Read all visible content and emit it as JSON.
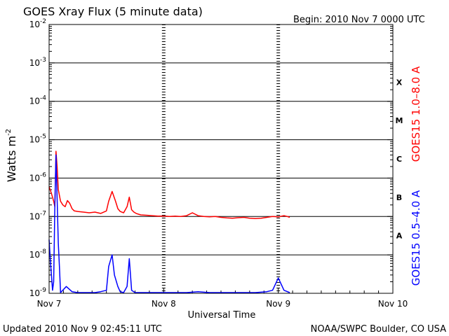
{
  "chart_data": {
    "type": "line",
    "title": "GOES Xray Flux (5 minute data)",
    "begin_label": "Begin:  2010 Nov 7 0000 UTC",
    "xlabel": "Universal Time",
    "ylabel_base": "Watts m",
    "ylabel_exp": "-2",
    "y_scale": "log",
    "ylim": [
      1e-09,
      0.01
    ],
    "xlim_days": [
      0,
      3
    ],
    "x_tick_labels": [
      "Nov 7",
      "Nov 8",
      "Nov 9",
      "Nov 10"
    ],
    "y_tick_labels": [
      {
        "base": "10",
        "exp": "-9",
        "value": 1e-09
      },
      {
        "base": "10",
        "exp": "-8",
        "value": 1e-08
      },
      {
        "base": "10",
        "exp": "-7",
        "value": 1e-07
      },
      {
        "base": "10",
        "exp": "-6",
        "value": 1e-06
      },
      {
        "base": "10",
        "exp": "-5",
        "value": 1e-05
      },
      {
        "base": "10",
        "exp": "-4",
        "value": 0.0001
      },
      {
        "base": "10",
        "exp": "-3",
        "value": 0.001
      },
      {
        "base": "10",
        "exp": "-2",
        "value": 0.01
      }
    ],
    "flare_classes": [
      {
        "label": "A",
        "lower": 1e-08
      },
      {
        "label": "B",
        "lower": 1e-07
      },
      {
        "label": "C",
        "lower": 1e-06
      },
      {
        "label": "M",
        "lower": 1e-05
      },
      {
        "label": "X",
        "lower": 0.0001
      }
    ],
    "grid": true,
    "series": [
      {
        "name": "GOES15 1.0–8.0 A",
        "color": "#ff0000",
        "x": [
          0,
          0.02,
          0.04,
          0.05,
          0.06,
          0.07,
          0.08,
          0.1,
          0.12,
          0.14,
          0.16,
          0.18,
          0.2,
          0.22,
          0.25,
          0.3,
          0.35,
          0.4,
          0.45,
          0.5,
          0.52,
          0.55,
          0.58,
          0.6,
          0.62,
          0.65,
          0.68,
          0.7,
          0.72,
          0.74,
          0.76,
          0.78,
          0.8,
          0.85,
          0.9,
          0.95,
          1.0,
          1.05,
          1.1,
          1.15,
          1.2,
          1.25,
          1.3,
          1.35,
          1.4,
          1.45,
          1.5,
          1.55,
          1.6,
          1.65,
          1.7,
          1.75,
          1.8,
          1.85,
          1.9,
          1.95,
          2.0,
          2.05,
          2.08,
          2.1
        ],
        "values": [
          6e-07,
          4e-07,
          2.5e-07,
          1.8e-07,
          5e-06,
          2e-06,
          5e-07,
          2.5e-07,
          2e-07,
          1.8e-07,
          2.6e-07,
          2.2e-07,
          1.6e-07,
          1.4e-07,
          1.35e-07,
          1.3e-07,
          1.25e-07,
          1.3e-07,
          1.2e-07,
          1.4e-07,
          2.5e-07,
          4.5e-07,
          2.5e-07,
          1.6e-07,
          1.35e-07,
          1.25e-07,
          1.8e-07,
          3.2e-07,
          1.5e-07,
          1.3e-07,
          1.2e-07,
          1.15e-07,
          1.1e-07,
          1.08e-07,
          1.05e-07,
          1.02e-07,
          1.03e-07,
          1e-07,
          1.02e-07,
          1e-07,
          1.05e-07,
          1.25e-07,
          1.05e-07,
          1e-07,
          9.8e-08,
          1e-07,
          9.5e-08,
          9.2e-08,
          9e-08,
          9.3e-08,
          9.5e-08,
          9e-08,
          8.8e-08,
          9e-08,
          9.5e-08,
          1e-07,
          9.8e-08,
          1.05e-07,
          1e-07,
          9.5e-08
        ]
      },
      {
        "name": "GOES15 0.5–4.0 A",
        "color": "#0000ff",
        "x": [
          0,
          0.01,
          0.02,
          0.03,
          0.04,
          0.05,
          0.06,
          0.07,
          0.08,
          0.09,
          0.1,
          0.15,
          0.2,
          0.25,
          0.3,
          0.35,
          0.4,
          0.45,
          0.5,
          0.52,
          0.55,
          0.57,
          0.6,
          0.62,
          0.65,
          0.68,
          0.7,
          0.72,
          0.75,
          0.8,
          0.9,
          1.0,
          1.1,
          1.2,
          1.3,
          1.4,
          1.5,
          1.6,
          1.7,
          1.8,
          1.9,
          1.95,
          2.0,
          2.05,
          2.1
        ],
        "values": [
          2.5e-08,
          8e-09,
          3e-09,
          1.2e-09,
          2e-09,
          2e-07,
          4e-06,
          3e-07,
          2e-08,
          5e-09,
          1e-09,
          1.5e-09,
          1.1e-09,
          1e-09,
          1e-09,
          1e-09,
          1e-09,
          1.1e-09,
          1.2e-09,
          5e-09,
          1e-08,
          3e-09,
          1.5e-09,
          1.1e-09,
          1e-09,
          1.5e-09,
          8e-09,
          1.2e-09,
          1e-09,
          1e-09,
          1e-09,
          1e-09,
          1e-09,
          1e-09,
          1.1e-09,
          1e-09,
          1e-09,
          1e-09,
          1e-09,
          1e-09,
          1.1e-09,
          1.2e-09,
          2.5e-09,
          1.2e-09,
          1e-09
        ]
      }
    ]
  },
  "footer": {
    "updated": "Updated 2010 Nov  9 02:45:11 UTC",
    "credit": "NOAA/SWPC Boulder, CO USA"
  }
}
